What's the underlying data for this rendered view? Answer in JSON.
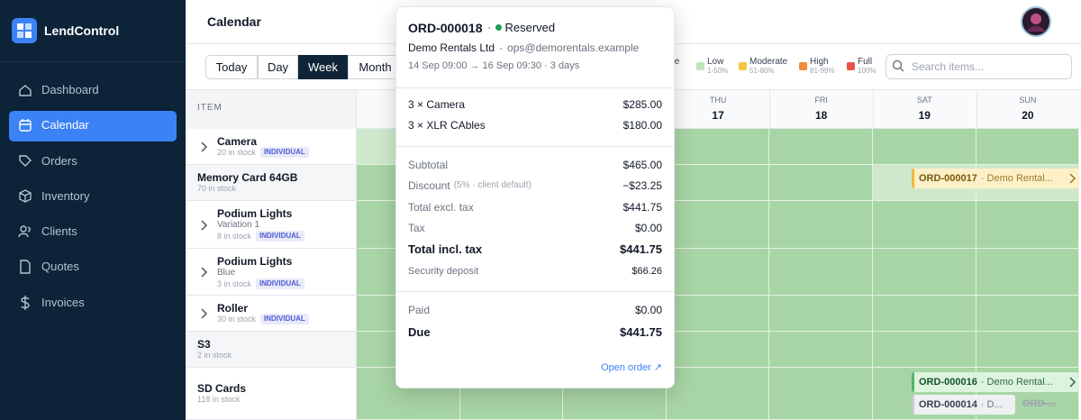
{
  "app": {
    "name": "LendControl"
  },
  "nav": {
    "items": [
      "Dashboard",
      "Calendar",
      "Orders",
      "Inventory",
      "Clients",
      "Quotes",
      "Invoices"
    ],
    "active": 1
  },
  "header": {
    "title": "Calendar"
  },
  "toolbar": {
    "views": [
      "Today",
      "Day",
      "Week",
      "Month"
    ],
    "active_view": 2,
    "legend_partial": "ble",
    "legend": [
      {
        "label": "Low",
        "range": "1-50%",
        "color": "#bfe3bd"
      },
      {
        "label": "Moderate",
        "range": "51-80%",
        "color": "#f5c542"
      },
      {
        "label": "High",
        "range": "81-99%",
        "color": "#f08a3c"
      },
      {
        "label": "Full",
        "range": "100%",
        "color": "#e5534b"
      }
    ],
    "search_placeholder": "Search items..."
  },
  "grid": {
    "item_header": "ITEM",
    "days": [
      {
        "day": "THU",
        "date": "17"
      },
      {
        "day": "FRI",
        "date": "18"
      },
      {
        "day": "SAT",
        "date": "19"
      },
      {
        "day": "SUN",
        "date": "20"
      }
    ],
    "rows": [
      {
        "name": "Camera",
        "stock": "20 in stock",
        "tag": "INDIVIDUAL"
      },
      {
        "name": "Memory Card 64GB",
        "stock": "70 in stock"
      },
      {
        "name": "Podium Lights",
        "variant": "Variation 1",
        "stock": "8 in stock",
        "tag": "INDIVIDUAL"
      },
      {
        "name": "Podium Lights",
        "variant": "Blue",
        "stock": "3 in stock",
        "tag": "INDIVIDUAL"
      },
      {
        "name": "Roller",
        "stock": "30 in stock",
        "tag": "INDIVIDUAL"
      },
      {
        "name": "S3",
        "stock": "2 in stock"
      },
      {
        "name": "SD Cards",
        "stock": "118 in stock"
      }
    ]
  },
  "events": [
    {
      "id": "ORD-000017",
      "client": "· Demo Rental..."
    },
    {
      "id": "ORD-000016",
      "client": "· Demo Rental..."
    },
    {
      "id": "ORD-000014",
      "client": "· D..."
    },
    {
      "id": "ORD-..."
    }
  ],
  "popover": {
    "order": "ORD-000018",
    "status": "Reserved",
    "client": "Demo Rentals Ltd",
    "email": "ops@demorentals.example",
    "period": "14 Sep 09:00 → 16 Sep 09:30 · 3 days",
    "lines": [
      {
        "label": "3 × Camera",
        "amount": "$285.00"
      },
      {
        "label": "3 × XLR CAbles",
        "amount": "$180.00"
      }
    ],
    "subtotal": {
      "label": "Subtotal",
      "amount": "$465.00"
    },
    "discount": {
      "label": "Discount",
      "note": "(5% · client default)",
      "amount": "−$23.25"
    },
    "total_excl": {
      "label": "Total excl. tax",
      "amount": "$441.75"
    },
    "tax": {
      "label": "Tax",
      "amount": "$0.00"
    },
    "total_incl": {
      "label": "Total incl. tax",
      "amount": "$441.75"
    },
    "deposit": {
      "label": "Security deposit",
      "amount": "$66.26"
    },
    "paid": {
      "label": "Paid",
      "amount": "$0.00"
    },
    "due": {
      "label": "Due",
      "amount": "$441.75"
    },
    "link": "Open order ↗"
  }
}
